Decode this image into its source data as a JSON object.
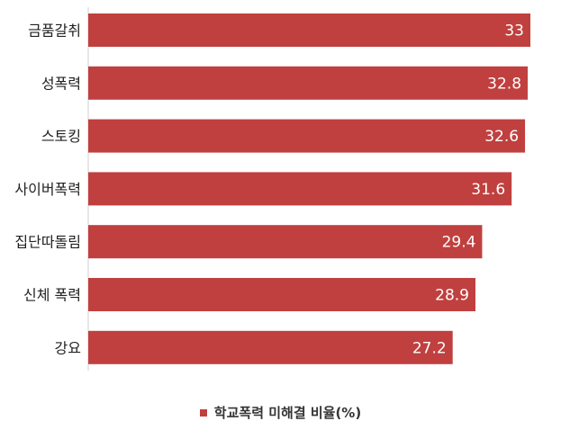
{
  "chart_data": {
    "type": "bar",
    "orientation": "horizontal",
    "categories": [
      "금품갈취",
      "성폭력",
      "스토킹",
      "사이버폭력",
      "집단따돌림",
      "신체 폭력",
      "강요"
    ],
    "values": [
      33,
      32.8,
      32.6,
      31.6,
      29.4,
      28.9,
      27.2
    ],
    "value_labels": [
      "33",
      "32.8",
      "32.6",
      "31.6",
      "29.4",
      "28.9",
      "27.2"
    ],
    "series": [
      {
        "name": "학교폭력 미해결 비율(%)",
        "values": [
          33,
          32.8,
          32.6,
          31.6,
          29.4,
          28.9,
          27.2
        ]
      }
    ],
    "xlim": [
      0,
      33
    ],
    "grid": false,
    "legend": "bottom",
    "bar_color": "#c0403f"
  },
  "legend": {
    "label": "학교폭력 미해결 비율(%)"
  }
}
